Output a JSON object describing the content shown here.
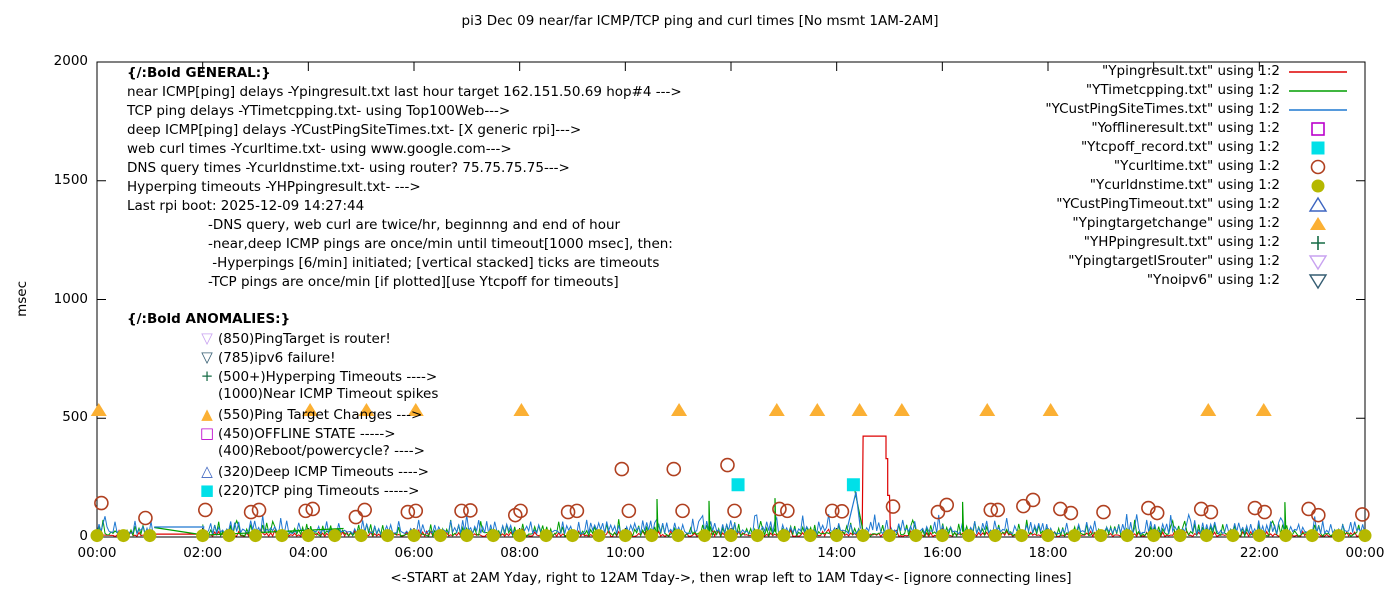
{
  "title": "pi3 Dec 09  near/far ICMP/TCP ping and curl times [No msmt 1AM-2AM]",
  "ylabel": "msec",
  "caption": "<-START at 2AM Yday, right to 12AM Tday->, then wrap left to 1AM Tday<- [ignore connecting lines]",
  "annotations": {
    "general": {
      "heading": "{/:Bold GENERAL:}",
      "lines": [
        "near ICMP[ping] delays -Ypingresult.txt last hour target 162.151.50.69 hop#4 --->",
        "TCP ping delays -YTimetcpping.txt- using Top100Web--->",
        "deep ICMP[ping] delays -YCustPingSiteTimes.txt- [X generic rpi]--->",
        "web curl times -Ycurltime.txt- using www.google.com--->",
        "DNS query times -Ycurldnstime.txt- using router? 75.75.75.75--->",
        "Hyperping timeouts -YHPpingresult.txt- --->",
        "Last rpi boot: 2025-12-09 14:27:44"
      ],
      "notes": [
        "-DNS query, web curl are twice/hr, beginnng and end of hour",
        "-near,deep ICMP pings are once/min until timeout[1000 msec], then:",
        " -Hyperpings [6/min] initiated; [vertical stacked] ticks are timeouts",
        "-TCP pings are once/min [if plotted][use Ytcpoff for timeouts]"
      ]
    },
    "anomalies": {
      "heading": "{/:Bold ANOMALIES:}",
      "items": [
        {
          "marker": "▽",
          "color": "#c8a2f0",
          "text": "(850)PingTarget is router!"
        },
        {
          "marker": "▽",
          "color": "#355d72",
          "text": "(785)ipv6 failure!"
        },
        {
          "marker": "+",
          "color": "#156b45",
          "text": "(500+)Hyperping Timeouts ---->"
        },
        {
          "marker": "",
          "color": "#000000",
          "text": "(1000)Near ICMP Timeout spikes"
        },
        {
          "marker": "▲",
          "color": "#fbb034",
          "text": "(550)Ping Target Changes --->"
        },
        {
          "marker": "□",
          "color": "#bb00cc",
          "text": "(450)OFFLINE STATE ----->"
        },
        {
          "marker": "",
          "color": "#000000",
          "text": "(400)Reboot/powercycle? ---->"
        },
        {
          "marker": "△",
          "color": "#3c64c0",
          "text": "(320)Deep ICMP Timeouts ---->"
        },
        {
          "marker": "■",
          "color": "#00e0e8",
          "text": "(220)TCP ping Timeouts ----->"
        }
      ]
    }
  },
  "legend": [
    {
      "label": "\"Ypingresult.txt\" using 1:2",
      "sample": "line",
      "color": "#dd0000"
    },
    {
      "label": "\"YTimetcpping.txt\" using 1:2",
      "sample": "line",
      "color": "#009e00"
    },
    {
      "label": "\"YCustPingSiteTimes.txt\" using 1:2",
      "sample": "line",
      "color": "#1f78d1"
    },
    {
      "label": "\"Yofflineresult.txt\" using 1:2",
      "sample": "square-open",
      "color": "#bb00cc"
    },
    {
      "label": "\"Ytcpoff_record.txt\" using 1:2",
      "sample": "square-filled",
      "color": "#00e0e8"
    },
    {
      "label": "\"Ycurltime.txt\" using 1:2",
      "sample": "circle-open",
      "color": "#b04020"
    },
    {
      "label": "\"Ycurldnstime.txt\" using 1:2",
      "sample": "circle-filled",
      "color": "#b5b800"
    },
    {
      "label": "\"YCustPingTimeout.txt\" using 1:2",
      "sample": "triangle-up-open",
      "color": "#3c64c0"
    },
    {
      "label": "\"Ypingtargetchange\" using 1:2",
      "sample": "triangle-up-filled",
      "color": "#fbb034"
    },
    {
      "label": "\"YHPpingresult.txt\" using 1:2",
      "sample": "plus",
      "color": "#156b45"
    },
    {
      "label": "\"YpingtargetISrouter\" using 1:2",
      "sample": "triangle-down-open",
      "color": "#c8a2f0"
    },
    {
      "label": "\"Ynoipv6\" using 1:2",
      "sample": "triangle-down-open",
      "color": "#355d72"
    }
  ],
  "chart_data": {
    "type": "mixed-time-series (noisy lines + scatter markers)",
    "x_ticks": [
      "00:00",
      "02:00",
      "04:00",
      "06:00",
      "08:00",
      "10:00",
      "12:00",
      "14:00",
      "16:00",
      "18:00",
      "20:00",
      "22:00",
      "00:00"
    ],
    "y_ticks": [
      0,
      500,
      1000,
      1500,
      2000
    ],
    "ylim": [
      0,
      2000
    ],
    "xlim_hours": [
      0,
      24
    ],
    "grid": false,
    "legend_position": "top-right",
    "measurement_gap": {
      "start": "01:05",
      "end": "02:00",
      "note": "No msmt 1AM-2AM"
    },
    "series": [
      {
        "name": "Ypingresult.txt",
        "type": "noise-line",
        "color": "#dd0000",
        "band_msec": [
          2,
          25
        ],
        "extra_segments": [
          [
            [
              "01:05",
              12
            ],
            [
              "02:02",
              12
            ]
          ],
          [
            [
              "14:29",
              20
            ],
            [
              "14:30",
              425
            ],
            [
              "14:56",
              425
            ],
            [
              "14:56",
              330
            ],
            [
              "14:58",
              330
            ],
            [
              "14:58",
              175
            ],
            [
              "15:00",
              175
            ],
            [
              "15:01",
              20
            ]
          ]
        ]
      },
      {
        "name": "YTimetcpping.txt",
        "type": "noise-line",
        "color": "#009e00",
        "band_msec": [
          3,
          56
        ],
        "extra_segments": [
          [
            [
              "01:05",
              40
            ],
            [
              "02:02",
              8
            ],
            [
              "04:40",
              36
            ]
          ],
          [
            [
              "14:20",
              208
            ],
            [
              "14:31",
              4
            ]
          ],
          [
            [
              "10:36",
              22
            ],
            [
              "10:36",
              160
            ],
            [
              "10:37",
              22
            ]
          ],
          [
            [
              "11:35",
              22
            ],
            [
              "11:35",
              152
            ],
            [
              "11:36",
              22
            ]
          ],
          [
            [
              "12:50",
              22
            ],
            [
              "12:50",
              164
            ],
            [
              "12:51",
              22
            ]
          ],
          [
            [
              "16:23",
              22
            ],
            [
              "16:23",
              148
            ],
            [
              "16:24",
              22
            ]
          ],
          [
            [
              "22:29",
              22
            ],
            [
              "22:29",
              147
            ],
            [
              "22:30",
              22
            ]
          ]
        ]
      },
      {
        "name": "YCustPingSiteTimes.txt",
        "type": "noise-line",
        "color": "#1f78d1",
        "band_msec": [
          12,
          72
        ],
        "extra_segments": [
          [
            [
              "01:05",
              42
            ],
            [
              "02:02",
              42
            ]
          ],
          [
            [
              "14:12",
              35
            ],
            [
              "14:22",
              190
            ],
            [
              "14:27",
              35
            ]
          ]
        ]
      },
      {
        "name": "Yofflineresult.txt",
        "type": "scatter",
        "marker": "square-open",
        "color": "#bb00cc",
        "points": []
      },
      {
        "name": "Ytcpoff_record.txt",
        "type": "scatter",
        "marker": "square-filled",
        "color": "#00e0e8",
        "points": [
          [
            "12:08",
            220
          ],
          [
            "14:19",
            220
          ]
        ]
      },
      {
        "name": "Ycurltime.txt",
        "type": "scatter",
        "marker": "circle-open",
        "color": "#b04020",
        "points": [
          [
            "00:05",
            143
          ],
          [
            "00:55",
            80
          ],
          [
            "02:03",
            114
          ],
          [
            "02:55",
            105
          ],
          [
            "03:04",
            114
          ],
          [
            "03:57",
            110
          ],
          [
            "04:05",
            118
          ],
          [
            "04:54",
            84
          ],
          [
            "05:04",
            114
          ],
          [
            "05:53",
            105
          ],
          [
            "06:02",
            110
          ],
          [
            "06:54",
            110
          ],
          [
            "07:04",
            112
          ],
          [
            "07:55",
            92
          ],
          [
            "08:01",
            110
          ],
          [
            "08:55",
            105
          ],
          [
            "09:05",
            110
          ],
          [
            "09:56",
            286
          ],
          [
            "10:04",
            110
          ],
          [
            "10:55",
            286
          ],
          [
            "11:05",
            110
          ],
          [
            "11:56",
            303
          ],
          [
            "12:04",
            110
          ],
          [
            "12:55",
            118
          ],
          [
            "13:04",
            110
          ],
          [
            "13:55",
            110
          ],
          [
            "14:06",
            108
          ],
          [
            "15:04",
            128
          ],
          [
            "15:55",
            105
          ],
          [
            "16:05",
            135
          ],
          [
            "16:55",
            114
          ],
          [
            "17:03",
            114
          ],
          [
            "17:32",
            130
          ],
          [
            "17:43",
            156
          ],
          [
            "18:14",
            118
          ],
          [
            "18:26",
            101
          ],
          [
            "19:03",
            105
          ],
          [
            "19:54",
            122
          ],
          [
            "20:04",
            101
          ],
          [
            "20:54",
            118
          ],
          [
            "21:05",
            105
          ],
          [
            "21:55",
            122
          ],
          [
            "22:06",
            105
          ],
          [
            "22:56",
            118
          ],
          [
            "23:07",
            92
          ],
          [
            "23:57",
            95
          ]
        ]
      },
      {
        "name": "Ycurldnstime.txt",
        "type": "scatter",
        "marker": "circle-filled",
        "color": "#b5b800",
        "value_msec": 6,
        "times": [
          "00:00",
          "00:30",
          "01:00",
          "02:00",
          "02:30",
          "03:00",
          "03:30",
          "04:00",
          "04:30",
          "05:00",
          "05:30",
          "06:00",
          "06:30",
          "07:00",
          "07:30",
          "08:00",
          "08:30",
          "09:00",
          "09:30",
          "10:00",
          "10:30",
          "11:00",
          "11:30",
          "12:00",
          "12:30",
          "13:00",
          "13:30",
          "14:00",
          "14:30",
          "15:00",
          "15:30",
          "16:00",
          "16:30",
          "17:00",
          "17:30",
          "18:00",
          "18:30",
          "19:00",
          "19:30",
          "20:00",
          "20:30",
          "21:00",
          "21:30",
          "22:00",
          "22:30",
          "23:00",
          "23:30",
          "24:00"
        ]
      },
      {
        "name": "YCustPingTimeout.txt",
        "type": "scatter",
        "marker": "triangle-up-open",
        "color": "#3c64c0",
        "points": []
      },
      {
        "name": "Ypingtargetchange",
        "type": "scatter",
        "marker": "triangle-up-filled",
        "color": "#fbb034",
        "value_msec": 535,
        "times": [
          "00:02",
          "04:02",
          "05:06",
          "06:02",
          "08:02",
          "11:01",
          "12:52",
          "13:38",
          "14:26",
          "15:14",
          "16:51",
          "18:03",
          "21:02",
          "22:05"
        ]
      },
      {
        "name": "YHPpingresult.txt",
        "type": "scatter",
        "marker": "plus",
        "color": "#156b45",
        "points": []
      },
      {
        "name": "YpingtargetISrouter",
        "type": "scatter",
        "marker": "triangle-down-open",
        "color": "#c8a2f0",
        "points": []
      },
      {
        "name": "Ynoipv6",
        "type": "scatter",
        "marker": "triangle-down-open",
        "color": "#355d72",
        "points": []
      }
    ]
  }
}
